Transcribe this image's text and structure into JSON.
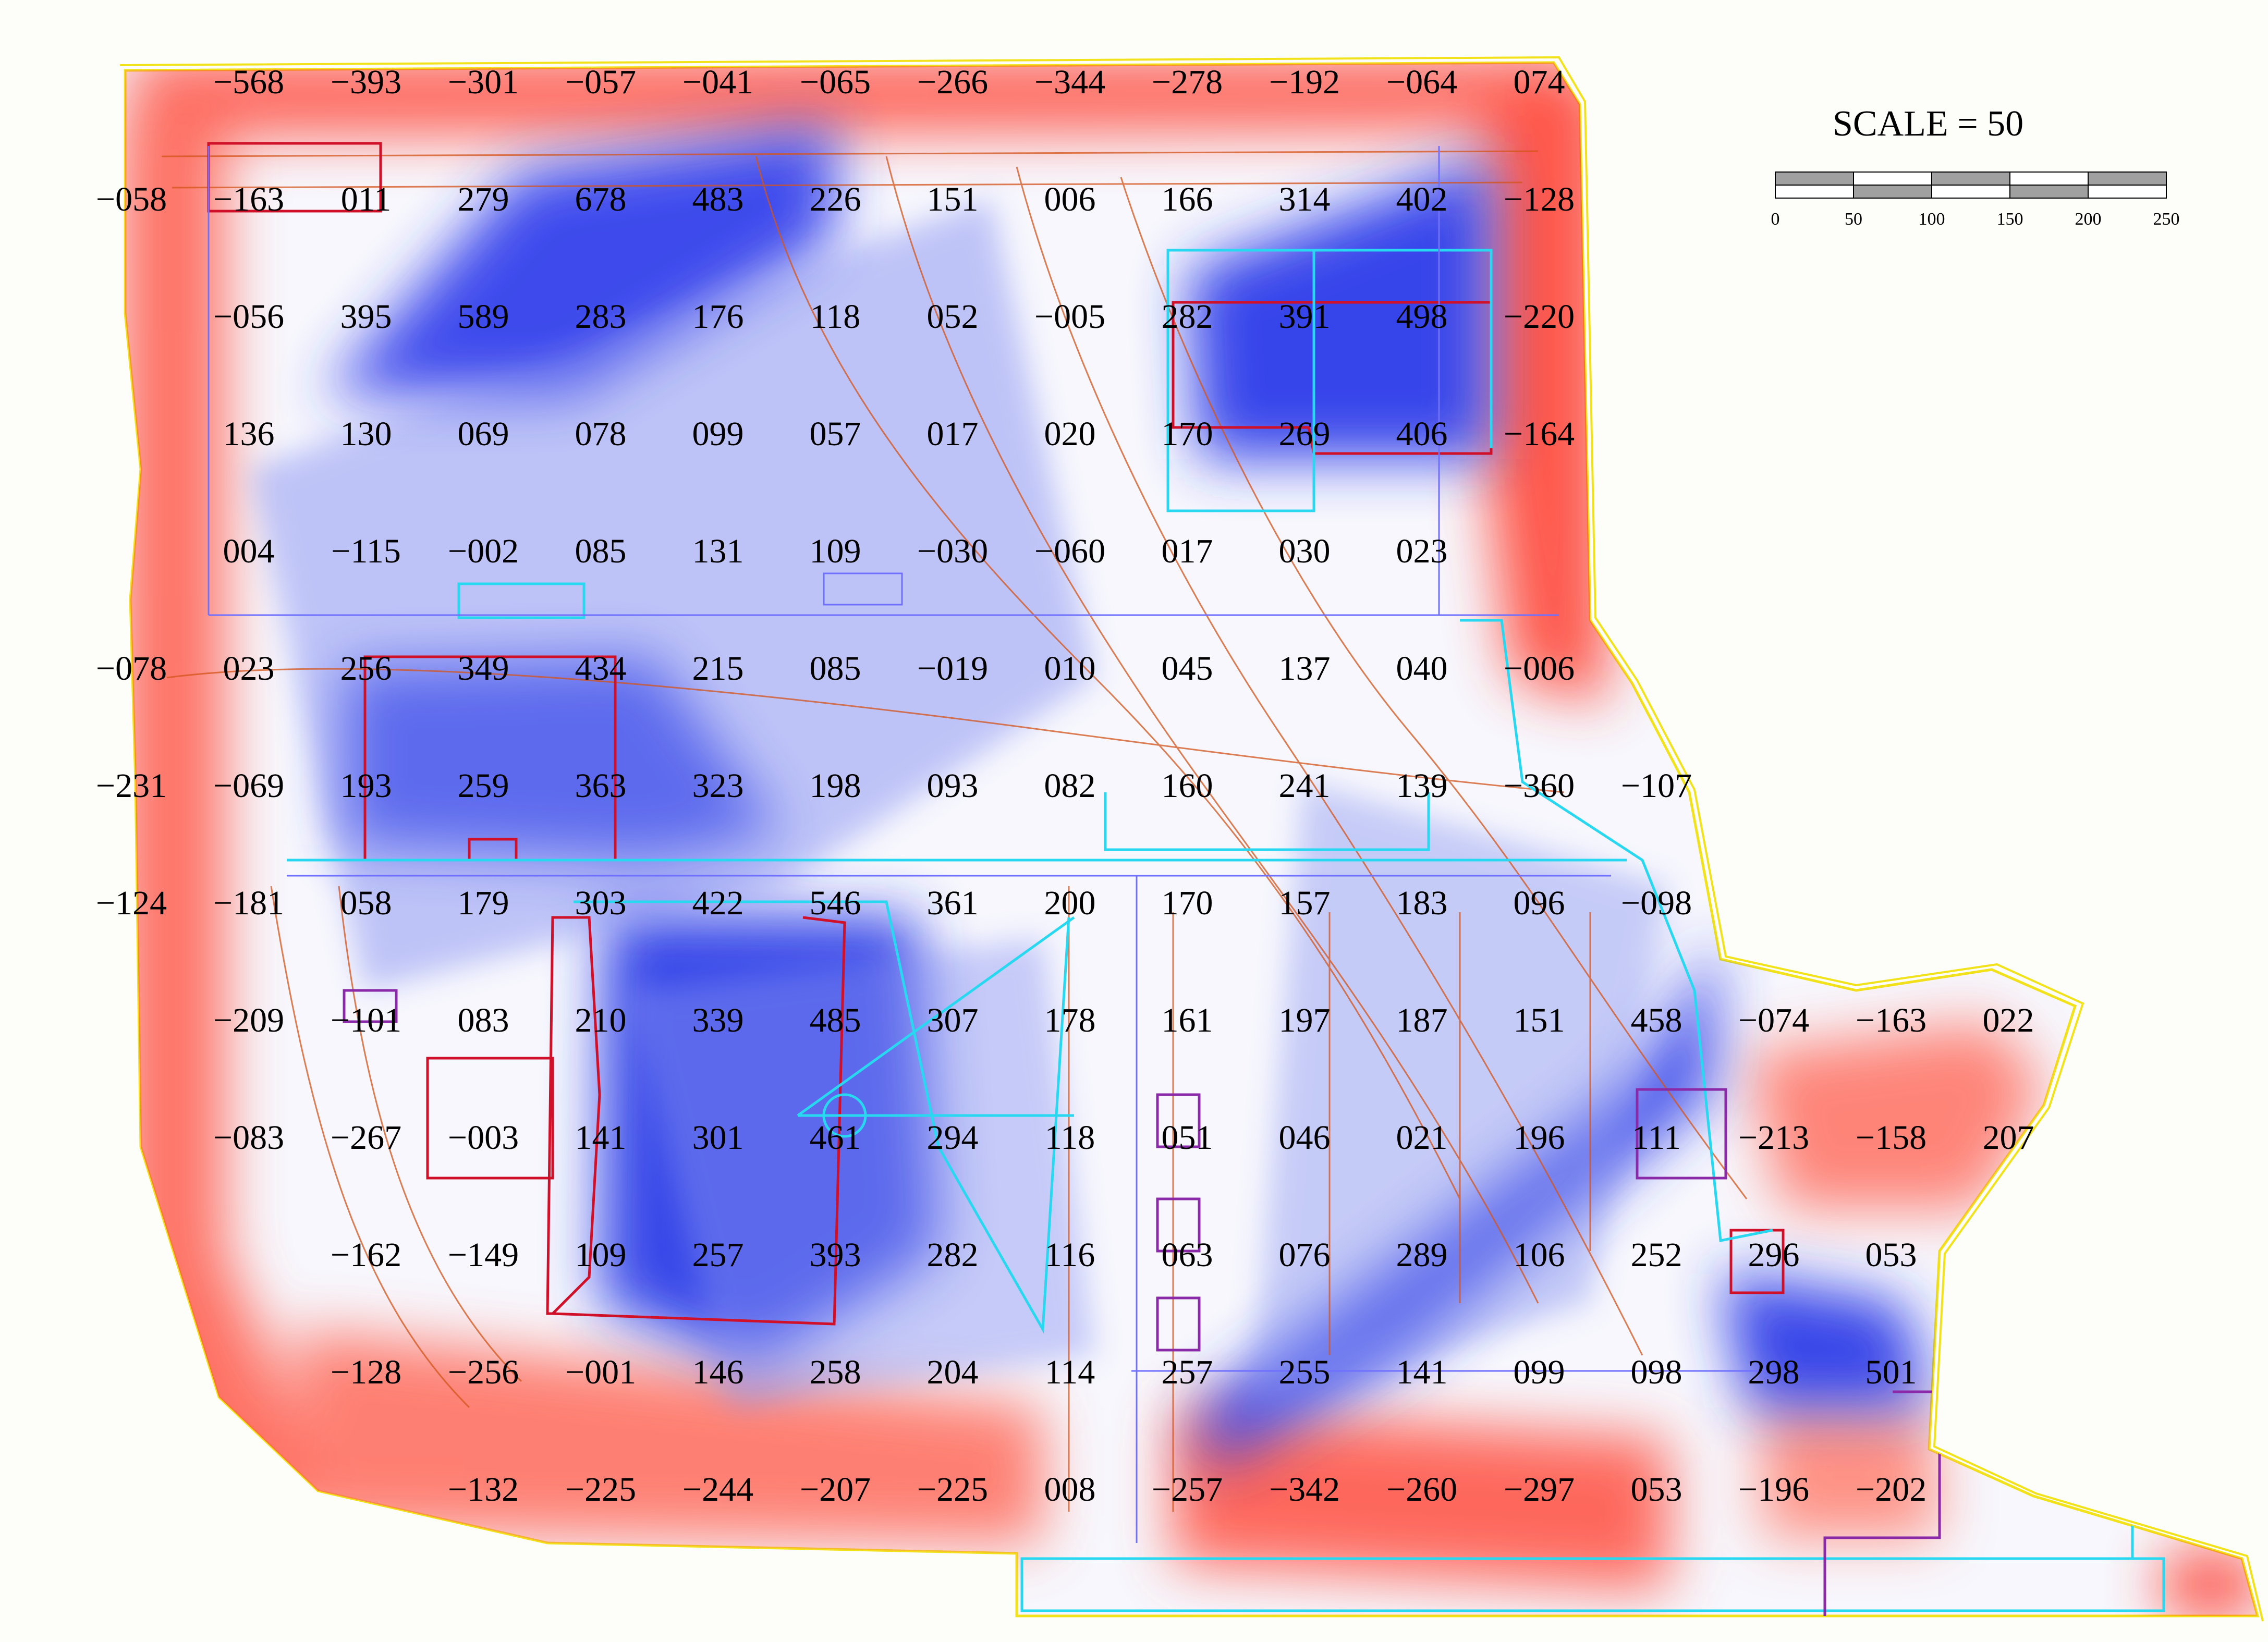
{
  "scale": {
    "title": "SCALE = 50",
    "ticks": [
      "0",
      "50",
      "100",
      "150",
      "200",
      "250"
    ]
  },
  "colors": {
    "cut": "#ff2a1a",
    "fill": "#1f2ee8",
    "background": "#fdfdf9",
    "contour": "#d4541a",
    "boundary": "#f2e21a",
    "building_outline": "#d01028",
    "pavement": "#28d8f0",
    "property_line": "#8a2aa8"
  },
  "grid": {
    "rows": [
      {
        "col_start": 1,
        "values": [
          "−568",
          "−393",
          "−301",
          "−057",
          "−041",
          "−065",
          "−266",
          "−344",
          "−278",
          "−192",
          "−064",
          "074"
        ]
      },
      {
        "col_start": 0,
        "values": [
          "−058",
          "−163",
          "011",
          "279",
          "678",
          "483",
          "226",
          "151",
          "006",
          "166",
          "314",
          "402",
          "−128"
        ]
      },
      {
        "col_start": 1,
        "values": [
          "−056",
          "395",
          "589",
          "283",
          "176",
          "118",
          "052",
          "−005",
          "282",
          "391",
          "498",
          "−220"
        ]
      },
      {
        "col_start": 1,
        "values": [
          "136",
          "130",
          "069",
          "078",
          "099",
          "057",
          "017",
          "020",
          "170",
          "269",
          "406",
          "−164"
        ]
      },
      {
        "col_start": 1,
        "values": [
          "004",
          "−115",
          "−002",
          "085",
          "131",
          "109",
          "−030",
          "−060",
          "017",
          "030",
          "023"
        ]
      },
      {
        "col_start": 0,
        "values": [
          "−078",
          "023",
          "256",
          "349",
          "434",
          "215",
          "085",
          "−019",
          "010",
          "045",
          "137",
          "040",
          "−006"
        ]
      },
      {
        "col_start": 0,
        "values": [
          "−231",
          "−069",
          "193",
          "259",
          "363",
          "323",
          "198",
          "093",
          "082",
          "160",
          "241",
          "139",
          "−360",
          "−107"
        ]
      },
      {
        "col_start": 0,
        "values": [
          "−124",
          "−181",
          "058",
          "179",
          "303",
          "422",
          "546",
          "361",
          "200",
          "170",
          "157",
          "183",
          "096",
          "−098"
        ]
      },
      {
        "col_start": 1,
        "values": [
          "−209",
          "−101",
          "083",
          "210",
          "339",
          "485",
          "307",
          "178",
          "161",
          "197",
          "187",
          "151",
          "458",
          "−074",
          "−163",
          "022"
        ]
      },
      {
        "col_start": 1,
        "values": [
          "−083",
          "−267",
          "−003",
          "141",
          "301",
          "461",
          "294",
          "118",
          "051",
          "046",
          "021",
          "196",
          "111",
          "−213",
          "−158",
          "207"
        ]
      },
      {
        "col_start": 2,
        "values": [
          "−162",
          "−149",
          "109",
          "257",
          "393",
          "282",
          "116",
          "063",
          "076",
          "289",
          "106",
          "252",
          "296",
          "053"
        ]
      },
      {
        "col_start": 2,
        "values": [
          "−128",
          "−256",
          "−001",
          "146",
          "258",
          "204",
          "114",
          "257",
          "255",
          "141",
          "099",
          "098",
          "298",
          "501"
        ]
      },
      {
        "col_start": 3,
        "values": [
          "−132",
          "−225",
          "−244",
          "−207",
          "−225",
          "008",
          "−257",
          "−342",
          "−260",
          "−297",
          "053",
          "−196",
          "−202"
        ]
      }
    ]
  }
}
